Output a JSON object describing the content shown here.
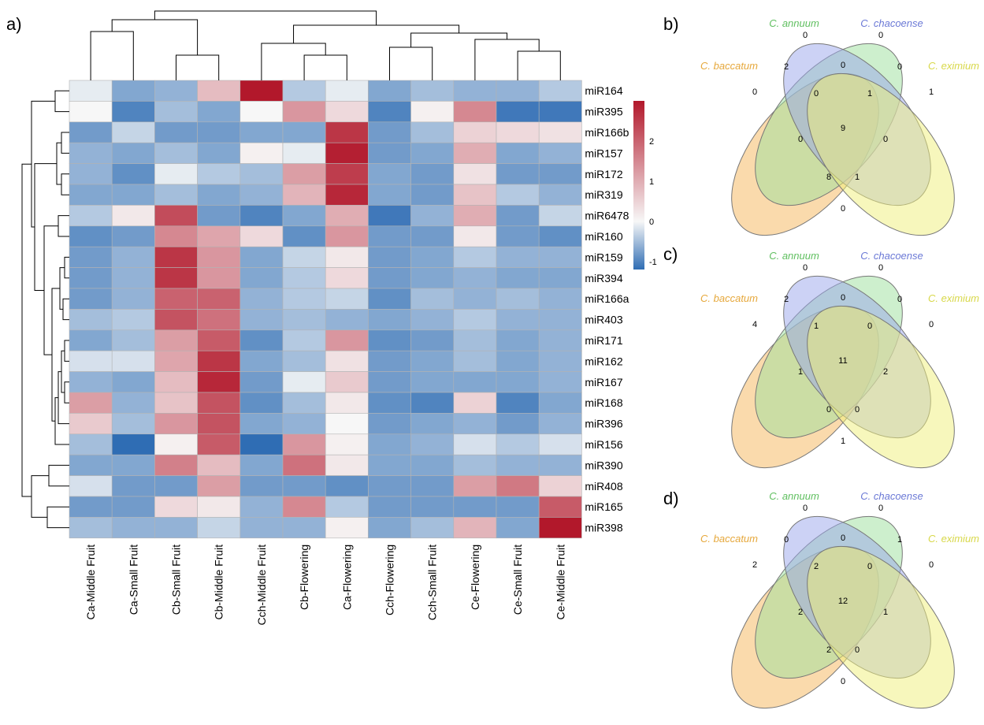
{
  "panel_labels": {
    "a": "a)",
    "b": "b)",
    "c": "c)",
    "d": "d)"
  },
  "chart_data": [
    {
      "type": "heatmap",
      "title": "",
      "rows": [
        "miR164",
        "miR395",
        "miR166b",
        "miR157",
        "miR172",
        "miR319",
        "miR6478",
        "miR160",
        "miR159",
        "miR394",
        "miR166a",
        "miR403",
        "miR171",
        "miR162",
        "miR167",
        "miR168",
        "miR396",
        "miR156",
        "miR390",
        "miR408",
        "miR165",
        "miR398"
      ],
      "columns": [
        "Ca-Middle Fruit",
        "Ca-Small Fruit",
        "Cb-Small Fruit",
        "Cb-Middle Fruit",
        "Cch-Middle Fruit",
        "Cb-Flowering",
        "Ca-Flowering",
        "Cch-Flowering",
        "Cch-Small Fruit",
        "Ce-Flowering",
        "Ce-Small Fruit",
        "Ce-Middle Fruit"
      ],
      "values": [
        [
          -0.1,
          -0.7,
          -0.6,
          0.8,
          3.0,
          -0.4,
          -0.1,
          -0.7,
          -0.5,
          -0.6,
          -0.6,
          -0.4
        ],
        [
          0.0,
          -1.0,
          -0.5,
          -0.7,
          0.0,
          1.3,
          0.4,
          -1.0,
          0.1,
          1.5,
          -1.1,
          -1.1
        ],
        [
          -0.8,
          -0.3,
          -0.8,
          -0.8,
          -0.7,
          -0.7,
          2.6,
          -0.8,
          -0.5,
          0.5,
          0.4,
          0.3
        ],
        [
          -0.6,
          -0.7,
          -0.5,
          -0.7,
          0.1,
          -0.1,
          2.9,
          -0.8,
          -0.7,
          1.0,
          -0.7,
          -0.6
        ],
        [
          -0.6,
          -0.9,
          -0.1,
          -0.4,
          -0.5,
          1.2,
          2.5,
          -0.7,
          -0.8,
          0.3,
          -0.8,
          -0.8
        ],
        [
          -0.7,
          -0.7,
          -0.5,
          -0.7,
          -0.6,
          0.9,
          2.8,
          -0.7,
          -0.8,
          0.7,
          -0.4,
          -0.6
        ],
        [
          -0.4,
          0.2,
          2.3,
          -0.8,
          -1.0,
          -0.7,
          1.0,
          -1.1,
          -0.6,
          1.0,
          -0.8,
          -0.3
        ],
        [
          -0.9,
          -0.8,
          1.5,
          1.1,
          0.4,
          -0.9,
          1.3,
          -0.8,
          -0.8,
          0.2,
          -0.8,
          -0.9
        ],
        [
          -0.8,
          -0.6,
          2.6,
          1.3,
          -0.7,
          -0.3,
          0.2,
          -0.8,
          -0.7,
          -0.4,
          -0.6,
          -0.6
        ],
        [
          -0.8,
          -0.6,
          2.6,
          1.3,
          -0.7,
          -0.4,
          0.4,
          -0.8,
          -0.7,
          -0.6,
          -0.7,
          -0.7
        ],
        [
          -0.8,
          -0.6,
          2.0,
          2.0,
          -0.6,
          -0.4,
          -0.3,
          -0.9,
          -0.5,
          -0.6,
          -0.5,
          -0.6
        ],
        [
          -0.5,
          -0.4,
          2.2,
          1.8,
          -0.6,
          -0.5,
          -0.6,
          -0.7,
          -0.6,
          -0.4,
          -0.6,
          -0.6
        ],
        [
          -0.7,
          -0.5,
          1.2,
          2.1,
          -0.9,
          -0.4,
          1.3,
          -0.9,
          -0.8,
          -0.5,
          -0.7,
          -0.6
        ],
        [
          -0.2,
          -0.2,
          1.1,
          2.6,
          -0.7,
          -0.5,
          0.3,
          -0.8,
          -0.7,
          -0.5,
          -0.7,
          -0.6
        ],
        [
          -0.6,
          -0.7,
          0.8,
          2.8,
          -0.8,
          -0.1,
          0.6,
          -0.8,
          -0.7,
          -0.7,
          -0.7,
          -0.6
        ],
        [
          1.2,
          -0.6,
          0.7,
          2.2,
          -0.9,
          -0.5,
          0.2,
          -0.9,
          -1.0,
          0.5,
          -1.0,
          -0.7
        ],
        [
          0.6,
          -0.5,
          1.3,
          2.2,
          -0.7,
          -0.6,
          0.0,
          -0.8,
          -0.7,
          -0.6,
          -0.8,
          -0.6
        ],
        [
          -0.5,
          -1.2,
          0.1,
          2.1,
          -1.2,
          1.3,
          0.1,
          -0.7,
          -0.6,
          -0.2,
          -0.4,
          -0.2
        ],
        [
          -0.7,
          -0.7,
          1.6,
          0.8,
          -0.7,
          1.8,
          0.2,
          -0.7,
          -0.7,
          -0.5,
          -0.6,
          -0.6
        ],
        [
          -0.2,
          -0.8,
          -0.8,
          1.2,
          -0.8,
          -0.8,
          -0.9,
          -0.8,
          -0.8,
          1.2,
          1.7,
          0.5
        ],
        [
          -0.8,
          -0.8,
          0.4,
          0.2,
          -0.6,
          1.5,
          -0.4,
          -0.8,
          -0.8,
          -0.8,
          -0.8,
          2.1
        ],
        [
          -0.5,
          -0.6,
          -0.6,
          -0.3,
          -0.6,
          -0.6,
          0.1,
          -0.7,
          -0.5,
          0.9,
          -0.7,
          3.0
        ]
      ],
      "color_scale": {
        "min_color": "#2f6db4",
        "mid_color": "#f7f7f7",
        "max_color": "#b2182b",
        "range": [
          -1.2,
          3.0
        ]
      },
      "colorbar_ticks": [
        "2",
        "1",
        "0",
        "-1"
      ],
      "colorbar_tick_values": [
        2,
        1,
        0,
        -1
      ],
      "dendrograms": "row and column hierarchical clustering"
    },
    {
      "type": "venn",
      "panel": "b",
      "sets": [
        "C. baccatum",
        "C. annuum",
        "C. chacoense",
        "C. eximium"
      ],
      "colors": [
        "#f6b55a",
        "#9be09b",
        "#9aa6ec",
        "#f0f07a"
      ],
      "region_values": {
        "b_only": "0",
        "a_only": "0",
        "ch_only": "0",
        "e_only": "1",
        "b_a": "2",
        "a_ch": "0",
        "ch_e": "0",
        "b_e": "0",
        "b_a_ch": "0",
        "a_ch_e": "1",
        "b_ch_e": "8",
        "b_a_e": "1",
        "a_e": "0",
        "b_ch": "0",
        "all": "9"
      }
    },
    {
      "type": "venn",
      "panel": "c",
      "sets": [
        "C. baccatum",
        "C. annuum",
        "C. chacoense",
        "C. eximium"
      ],
      "colors": [
        "#f6b55a",
        "#9be09b",
        "#9aa6ec",
        "#f0f07a"
      ],
      "region_values": {
        "b_only": "4",
        "a_only": "0",
        "ch_only": "0",
        "e_only": "0",
        "b_a": "2",
        "a_ch": "0",
        "ch_e": "0",
        "b_e": "1",
        "b_a_ch": "1",
        "a_ch_e": "0",
        "b_ch_e": "0",
        "b_a_e": "0",
        "a_e": "2",
        "b_ch": "1",
        "all": "11"
      }
    },
    {
      "type": "venn",
      "panel": "d",
      "sets": [
        "C. baccatum",
        "C. annuum",
        "C. chacoense",
        "C. eximium"
      ],
      "colors": [
        "#f6b55a",
        "#9be09b",
        "#9aa6ec",
        "#f0f07a"
      ],
      "region_values": {
        "b_only": "2",
        "a_only": "0",
        "ch_only": "0",
        "e_only": "0",
        "b_a": "0",
        "a_ch": "0",
        "ch_e": "1",
        "b_e": "0",
        "b_a_ch": "2",
        "a_ch_e": "0",
        "b_ch_e": "2",
        "b_a_e": "0",
        "a_e": "1",
        "b_ch": "2",
        "all": "12"
      }
    }
  ]
}
